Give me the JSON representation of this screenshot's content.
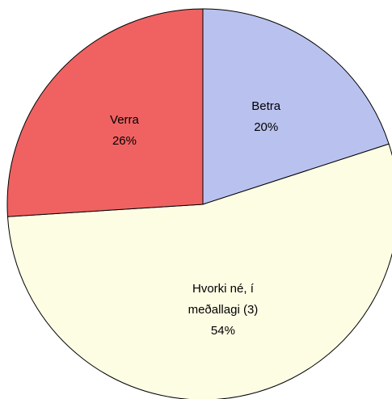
{
  "chart_data": {
    "type": "pie",
    "categories": [
      "Betra",
      "Hvorki né, í meðallagi (3)",
      "Verra"
    ],
    "values": [
      20,
      54,
      26
    ],
    "value_labels": [
      "20%",
      "54%",
      "26%"
    ],
    "colors": [
      "#b9c2ee",
      "#fdfde4",
      "#f06262"
    ]
  }
}
